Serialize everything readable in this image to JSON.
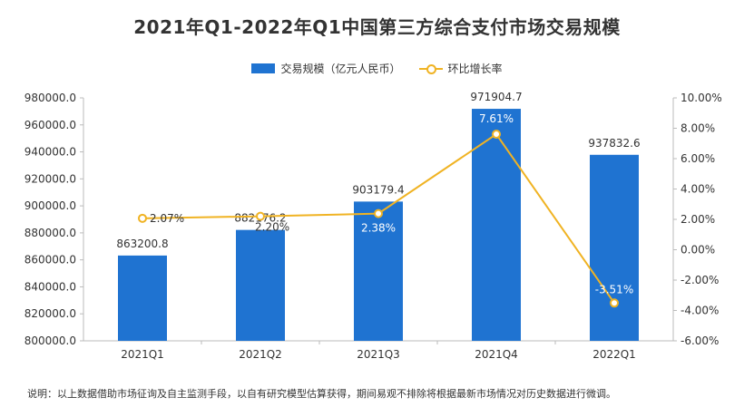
{
  "chart_data": {
    "type": "bar",
    "title": "2021年Q1-2022年Q1中国第三方综合支付市场交易规模",
    "categories": [
      "2021Q1",
      "2021Q2",
      "2021Q3",
      "2021Q4",
      "2022Q1"
    ],
    "series": [
      {
        "name": "交易规模（亿元人民币）",
        "type": "bar",
        "axis": "left",
        "values": [
          863200.8,
          882176.2,
          903179.4,
          971904.7,
          937832.6
        ],
        "labels": [
          "863200.8",
          "882176.2",
          "903179.4",
          "971904.7",
          "937832.6"
        ]
      },
      {
        "name": "环比增长率",
        "type": "line",
        "axis": "right",
        "values": [
          2.07,
          2.2,
          2.38,
          7.61,
          -3.51
        ],
        "labels": [
          "2.07%",
          "2.20%",
          "2.38%",
          "7.61%",
          "-3.51%"
        ]
      }
    ],
    "y_left": {
      "min": 800000,
      "max": 980000,
      "ticks": [
        800000,
        820000,
        840000,
        860000,
        880000,
        900000,
        920000,
        940000,
        960000,
        980000
      ],
      "tick_labels": [
        "800000.0",
        "820000.0",
        "840000.0",
        "860000.0",
        "880000.0",
        "900000.0",
        "920000.0",
        "940000.0",
        "960000.0",
        "980000.0"
      ]
    },
    "y_right": {
      "min": -6,
      "max": 10,
      "ticks": [
        -6,
        -4,
        -2,
        0,
        2,
        4,
        6,
        8,
        10
      ],
      "tick_labels": [
        "-6.00%",
        "-4.00%",
        "-2.00%",
        "0.00%",
        "2.00%",
        "4.00%",
        "6.00%",
        "8.00%",
        "10.00%"
      ]
    },
    "grid": false,
    "legend_position": "top-center",
    "colors": {
      "bar": "#1f73d1",
      "line": "#f0b323"
    }
  },
  "footer_note": "说明：以上数据借助市场征询及自主监测手段，以自有研究模型估算获得，期间易观不排除将根据最新市场情况对历史数据进行微调。"
}
